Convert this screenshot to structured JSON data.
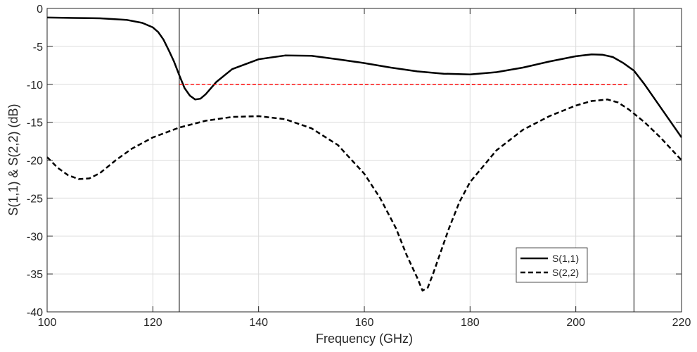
{
  "chart_data": {
    "type": "line",
    "xlabel": "Frequency (GHz)",
    "ylabel": "S(1,1) & S(2,2) (dB)",
    "xlim": [
      100,
      220
    ],
    "ylim": [
      -40,
      0
    ],
    "xticks": [
      100,
      120,
      140,
      160,
      180,
      200,
      220
    ],
    "yticks": [
      0,
      -5,
      -10,
      -15,
      -20,
      -25,
      -30,
      -35,
      -40
    ],
    "grid": true,
    "legend_position": "bottom-right",
    "series": [
      {
        "name": "S(1,1)",
        "color": "#000000",
        "style": "solid",
        "x": [
          100,
          105,
          110,
          115,
          118,
          120,
          121,
          122,
          123,
          124,
          125,
          126,
          127,
          128,
          129,
          130,
          132,
          135,
          140,
          145,
          150,
          155,
          160,
          165,
          170,
          175,
          180,
          185,
          190,
          195,
          200,
          203,
          205,
          207,
          209,
          211,
          213,
          215,
          217,
          220
        ],
        "y": [
          -1.2,
          -1.25,
          -1.3,
          -1.5,
          -1.9,
          -2.5,
          -3.1,
          -4.1,
          -5.5,
          -7.0,
          -8.8,
          -10.5,
          -11.5,
          -12.0,
          -11.9,
          -11.3,
          -9.7,
          -8.0,
          -6.7,
          -6.2,
          -6.25,
          -6.7,
          -7.2,
          -7.8,
          -8.3,
          -8.6,
          -8.7,
          -8.4,
          -7.8,
          -7.0,
          -6.3,
          -6.05,
          -6.1,
          -6.4,
          -7.2,
          -8.2,
          -10.0,
          -12.0,
          -14.0,
          -17.0
        ]
      },
      {
        "name": "S(2,2)",
        "color": "#000000",
        "style": "dashed",
        "x": [
          100,
          102,
          104,
          106,
          108,
          110,
          113,
          116,
          120,
          125,
          130,
          135,
          140,
          145,
          150,
          155,
          160,
          163,
          166,
          168,
          170,
          171,
          172,
          173,
          174,
          176,
          178,
          180,
          185,
          190,
          195,
          200,
          203,
          206,
          208,
          210,
          213,
          216,
          220
        ],
        "y": [
          -19.6,
          -21.0,
          -22.0,
          -22.5,
          -22.4,
          -21.7,
          -20.0,
          -18.5,
          -17.0,
          -15.7,
          -14.8,
          -14.3,
          -14.2,
          -14.6,
          -15.8,
          -18.0,
          -21.8,
          -25.0,
          -29.0,
          -32.5,
          -35.5,
          -37.2,
          -36.8,
          -35.0,
          -33.0,
          -29.0,
          -25.5,
          -22.9,
          -18.7,
          -16.0,
          -14.2,
          -12.8,
          -12.2,
          -12.0,
          -12.4,
          -13.3,
          -15.0,
          -17.0,
          -20.0
        ]
      },
      {
        "color": "#ff0000",
        "style": "dashed",
        "x": [
          125,
          210
        ],
        "y": [
          -10.0,
          -10.05
        ]
      }
    ],
    "vertical_markers": [
      125,
      211
    ]
  }
}
